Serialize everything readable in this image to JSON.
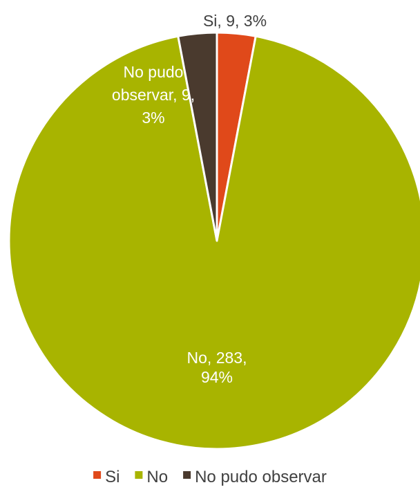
{
  "chart_data": {
    "type": "pie",
    "categories": [
      "Si",
      "No",
      "No pudo observar"
    ],
    "values": [
      9,
      283,
      9
    ],
    "percentages": [
      "3%",
      "94%",
      "3%"
    ],
    "colors": [
      "#E0491A",
      "#A8B400",
      "#4A3A2E"
    ],
    "data_labels": [
      [
        "Si, 9, 3%"
      ],
      [
        "No, 283,",
        "94%"
      ],
      [
        "No pudo",
        "observar, 9,",
        "3%"
      ]
    ],
    "legend": {
      "position": "bottom",
      "entries": [
        "Si",
        "No",
        "No pudo observar"
      ]
    }
  }
}
